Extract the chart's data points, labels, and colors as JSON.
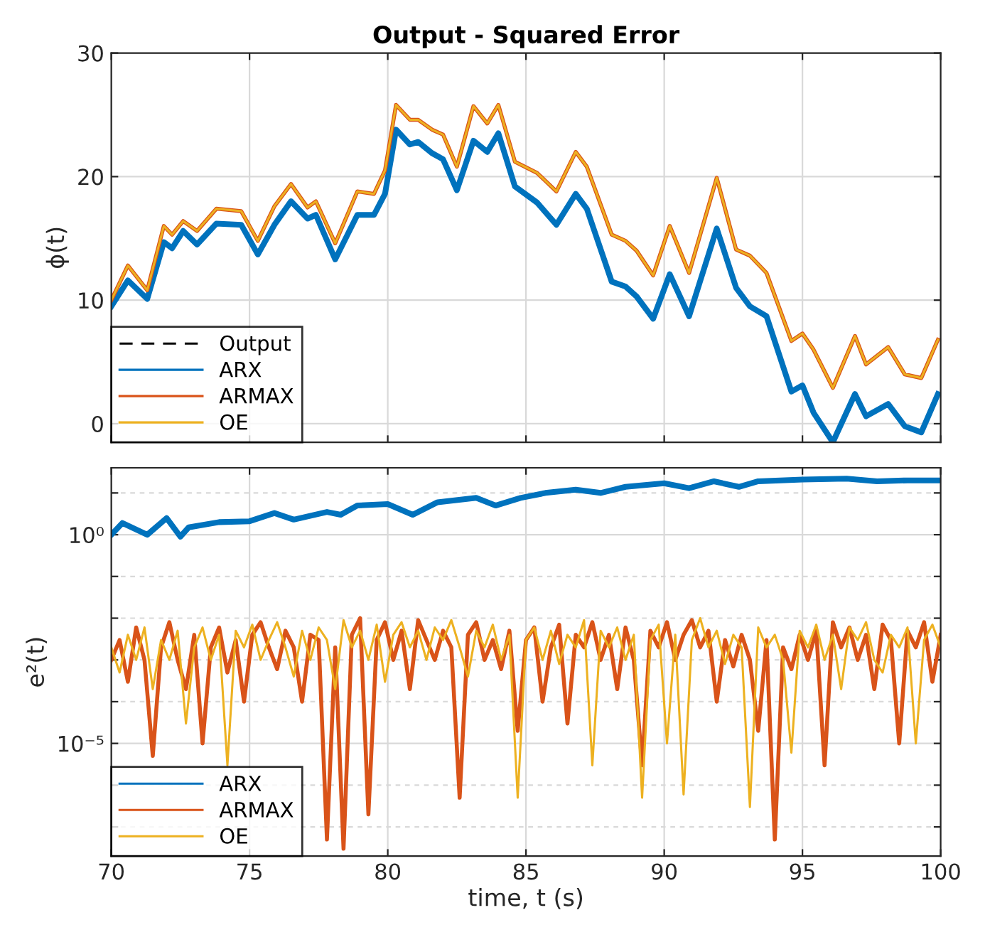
{
  "chart_data": [
    {
      "type": "line",
      "title": "Output - Squared Error",
      "ylabel": "ϕ(t)",
      "xlim": [
        70,
        100
      ],
      "xticks": [
        70,
        75,
        80,
        85,
        90,
        95,
        100
      ],
      "ylim": [
        -1.5,
        30
      ],
      "yticks": [
        0,
        10,
        20,
        30
      ],
      "tick_labels": "y",
      "grid": true,
      "legend": "bottom left",
      "line_style": "solid",
      "marker": "none",
      "series": [
        {
          "name": "Output",
          "color": "#000000",
          "line_style": "dashed"
        },
        {
          "name": "ARX",
          "color": "#0072bd",
          "x": [
            70,
            70.6,
            71.3,
            71.9,
            72.2,
            72.6,
            73.1,
            73.8,
            74.7,
            75.3,
            75.9,
            76.5,
            77.1,
            77.4,
            78.1,
            78.9,
            79.5,
            79.9,
            80.3,
            80.8,
            81.1,
            81.6,
            82.0,
            82.5,
            83.1,
            83.6,
            84.0,
            84.6,
            85.4,
            86.1,
            86.8,
            87.2,
            88.1,
            88.6,
            89.0,
            89.6,
            90.2,
            90.9,
            91.9,
            92.6,
            93.1,
            93.7,
            94.6,
            95.0,
            95.4,
            96.1,
            96.9,
            97.3,
            98.1,
            98.7,
            99.3,
            99.9
          ],
          "values": [
            9.5,
            11.6,
            10.1,
            14.7,
            14.2,
            15.6,
            14.5,
            16.2,
            16.1,
            13.7,
            16.1,
            18.0,
            16.6,
            16.9,
            13.3,
            16.9,
            16.9,
            18.6,
            23.8,
            22.6,
            22.8,
            21.9,
            21.4,
            18.9,
            22.9,
            22.0,
            23.5,
            19.2,
            17.9,
            16.1,
            18.6,
            17.4,
            11.5,
            11.1,
            10.3,
            8.5,
            12.1,
            8.7,
            15.8,
            11.0,
            9.5,
            8.7,
            2.6,
            3.1,
            0.9,
            -1.5,
            2.4,
            0.6,
            1.6,
            -0.2,
            -0.7,
            2.4
          ]
        },
        {
          "name": "ARMAX",
          "color": "#d95319",
          "x": [
            70,
            70.6,
            71.3,
            71.9,
            72.2,
            72.6,
            73.1,
            73.8,
            74.7,
            75.3,
            75.9,
            76.5,
            77.1,
            77.4,
            78.1,
            78.9,
            79.5,
            79.9,
            80.3,
            80.8,
            81.1,
            81.6,
            82.0,
            82.5,
            83.1,
            83.6,
            84.0,
            84.6,
            85.4,
            86.1,
            86.8,
            87.2,
            88.1,
            88.6,
            89.0,
            89.6,
            90.2,
            90.9,
            91.9,
            92.6,
            93.1,
            93.7,
            94.6,
            95.0,
            95.4,
            96.1,
            96.9,
            97.3,
            98.1,
            98.7,
            99.3,
            99.9
          ],
          "values": [
            10,
            12.8,
            10.8,
            16,
            15.3,
            16.4,
            15.6,
            17.4,
            17.2,
            14.8,
            17.6,
            19.4,
            17.5,
            18.0,
            14.6,
            18.8,
            18.6,
            20.5,
            25.8,
            24.6,
            24.6,
            23.8,
            23.4,
            20.8,
            25.7,
            24.3,
            25.8,
            21.2,
            20.3,
            18.8,
            22.0,
            20.8,
            15.3,
            14.8,
            14.0,
            12.0,
            16.0,
            12.2,
            19.9,
            14.1,
            13.6,
            12.2,
            6.7,
            7.3,
            6.0,
            2.9,
            7.1,
            4.8,
            6.2,
            4.0,
            3.7,
            6.8
          ]
        },
        {
          "name": "OE",
          "color": "#edb120",
          "x": [
            70,
            70.6,
            71.3,
            71.9,
            72.2,
            72.6,
            73.1,
            73.8,
            74.7,
            75.3,
            75.9,
            76.5,
            77.1,
            77.4,
            78.1,
            78.9,
            79.5,
            79.9,
            80.3,
            80.8,
            81.1,
            81.6,
            82.0,
            82.5,
            83.1,
            83.6,
            84.0,
            84.6,
            85.4,
            86.1,
            86.8,
            87.2,
            88.1,
            88.6,
            89.0,
            89.6,
            90.2,
            90.9,
            91.9,
            92.6,
            93.1,
            93.7,
            94.6,
            95.0,
            95.4,
            96.1,
            96.9,
            97.3,
            98.1,
            98.7,
            99.3,
            99.9
          ],
          "values": [
            10,
            12.8,
            10.8,
            16,
            15.3,
            16.4,
            15.6,
            17.4,
            17.2,
            14.8,
            17.6,
            19.4,
            17.5,
            18.0,
            14.6,
            18.8,
            18.6,
            20.5,
            25.8,
            24.6,
            24.6,
            23.8,
            23.4,
            20.8,
            25.7,
            24.3,
            25.8,
            21.2,
            20.3,
            18.8,
            22.0,
            20.8,
            15.3,
            14.8,
            14.0,
            12.0,
            16.0,
            12.2,
            19.9,
            14.1,
            13.6,
            12.2,
            6.7,
            7.3,
            6.0,
            2.9,
            7.1,
            4.8,
            6.2,
            4.0,
            3.7,
            6.8
          ]
        }
      ]
    },
    {
      "type": "line",
      "xlabel": "time, t (s)",
      "ylabel": "e²(t)",
      "log": "y",
      "xlim": [
        70,
        100
      ],
      "xticks": [
        70,
        75,
        80,
        85,
        90,
        95,
        100
      ],
      "ylim": [
        2e-08,
        40
      ],
      "yticks": [
        {
          "value": 10,
          "label": null
        },
        {
          "value": 1,
          "label": "10⁰"
        },
        {
          "value": 0.1,
          "label": null
        },
        {
          "value": 0.01,
          "label": null
        },
        {
          "value": 0.001,
          "label": null
        },
        {
          "value": 0.0001,
          "label": null
        },
        {
          "value": 1e-05,
          "label": "10⁻⁵"
        },
        {
          "value": 1e-06,
          "label": null
        },
        {
          "value": 1e-07,
          "label": null
        }
      ],
      "grid": true,
      "legend": "bottom left",
      "line_style": "solid",
      "marker": "none",
      "x": [
        70,
        70.3,
        70.6,
        70.9,
        71.2,
        71.5,
        71.8,
        72.1,
        72.4,
        72.7,
        73,
        73.3,
        73.6,
        73.9,
        74.2,
        74.5,
        74.8,
        75.1,
        75.4,
        75.7,
        76,
        76.3,
        76.6,
        76.9,
        77.2,
        77.5,
        77.8,
        78.1,
        78.4,
        78.7,
        79,
        79.3,
        79.6,
        79.9,
        80.2,
        80.5,
        80.8,
        81.1,
        81.4,
        81.7,
        82,
        82.3,
        82.6,
        82.9,
        83.2,
        83.5,
        83.8,
        84.1,
        84.4,
        84.7,
        85,
        85.3,
        85.6,
        85.9,
        86.2,
        86.5,
        86.8,
        87.1,
        87.4,
        87.7,
        88,
        88.3,
        88.6,
        88.9,
        89.2,
        89.5,
        89.8,
        90.1,
        90.4,
        90.7,
        91,
        91.3,
        91.6,
        91.9,
        92.2,
        92.5,
        92.8,
        93.1,
        93.4,
        93.7,
        94,
        94.3,
        94.6,
        94.9,
        95.2,
        95.5,
        95.8,
        96.1,
        96.4,
        96.7,
        97,
        97.3,
        97.6,
        97.9,
        98.2,
        98.5,
        98.8,
        99.1,
        99.4,
        99.7,
        100
      ],
      "series": [
        {
          "name": "ARX",
          "color": "#0072bd",
          "x": [
            70,
            70.4,
            71.3,
            72.0,
            72.5,
            72.8,
            73.9,
            75.0,
            75.9,
            76.6,
            77.8,
            78.3,
            78.9,
            80.0,
            80.9,
            81.8,
            83.2,
            83.9,
            84.8,
            85.7,
            86.8,
            87.7,
            88.6,
            90.0,
            90.9,
            91.8,
            92.7,
            93.4,
            95.0,
            96.6,
            97.7,
            98.8,
            100
          ],
          "values": [
            1.0,
            1.9,
            1.0,
            2.5,
            0.9,
            1.5,
            2.0,
            2.1,
            3.3,
            2.3,
            3.5,
            3.0,
            5,
            5.4,
            3,
            6,
            7.6,
            5,
            7.6,
            10,
            12,
            10,
            14,
            17,
            13,
            19,
            14,
            19,
            21,
            22,
            19,
            20,
            20
          ]
        },
        {
          "name": "ARMAX",
          "color": "#d95319",
          "values": [
            0.001,
            0.003,
            0.0003,
            0.006,
            0.001,
            5e-06,
            0.002,
            0.008,
            0.001,
            0.0002,
            0.004,
            1e-05,
            0.002,
            0.006,
            0.0005,
            0.003,
            0.0001,
            0.004,
            0.008,
            0.002,
            0.0006,
            0.005,
            0.002,
            0.0001,
            0.004,
            0.003,
            5e-08,
            0.002,
            3e-08,
            0.004,
            0.01,
            2e-07,
            0.003,
            0.008,
            0.001,
            0.005,
            0.0002,
            0.009,
            0.003,
            0.001,
            0.005,
            0.002,
            5e-07,
            0.004,
            0.008,
            0.001,
            0.003,
            0.0006,
            0.005,
            2e-05,
            0.003,
            0.006,
            0.0001,
            0.002,
            0.007,
            3e-05,
            0.004,
            0.002,
            0.008,
            0.001,
            0.004,
            0.0002,
            0.006,
            0.001,
            3e-06,
            0.005,
            0.002,
            0.008,
            0.001,
            0.004,
            0.009,
            0.002,
            0.005,
            0.0001,
            0.003,
            0.0007,
            0.004,
            0.001,
            2e-05,
            0.003,
            5e-08,
            0.002,
            0.0006,
            0.004,
            0.001,
            0.005,
            3e-06,
            0.008,
            0.002,
            0.006,
            0.001,
            0.004,
            0.0002,
            0.007,
            0.003,
            1e-05,
            0.005,
            0.002,
            0.008,
            0.0003,
            0.004
          ]
        },
        {
          "name": "OE",
          "color": "#edb120",
          "values": [
            0.002,
            0.0005,
            0.004,
            0.001,
            0.006,
            0.0002,
            0.003,
            0.001,
            0.005,
            3e-05,
            0.002,
            0.006,
            0.001,
            0.004,
            3e-06,
            0.005,
            0.002,
            0.007,
            0.001,
            0.003,
            0.008,
            0.002,
            0.0004,
            0.005,
            0.001,
            0.006,
            0.003,
            0.0002,
            0.009,
            0.002,
            0.005,
            0.001,
            0.007,
            0.0003,
            0.004,
            0.008,
            0.002,
            0.005,
            0.001,
            0.006,
            0.003,
            0.009,
            0.002,
            0.0004,
            0.005,
            0.002,
            0.007,
            0.001,
            0.004,
            5e-07,
            0.003,
            0.006,
            0.001,
            0.005,
            0.0008,
            0.004,
            0.002,
            0.009,
            3e-06,
            0.005,
            0.002,
            0.006,
            0.001,
            0.004,
            5e-07,
            0.003,
            0.007,
            1e-05,
            0.004,
            6e-07,
            0.003,
            0.01,
            0.002,
            0.005,
            0.0008,
            0.004,
            0.002,
            3e-07,
            0.006,
            0.002,
            0.004,
            0.001,
            6e-06,
            0.005,
            0.002,
            0.007,
            0.001,
            0.004,
            0.0002,
            0.006,
            0.003,
            0.008,
            0.001,
            0.0005,
            0.004,
            0.002,
            0.006,
            1e-05,
            0.003,
            0.007,
            0.002
          ]
        }
      ]
    }
  ]
}
